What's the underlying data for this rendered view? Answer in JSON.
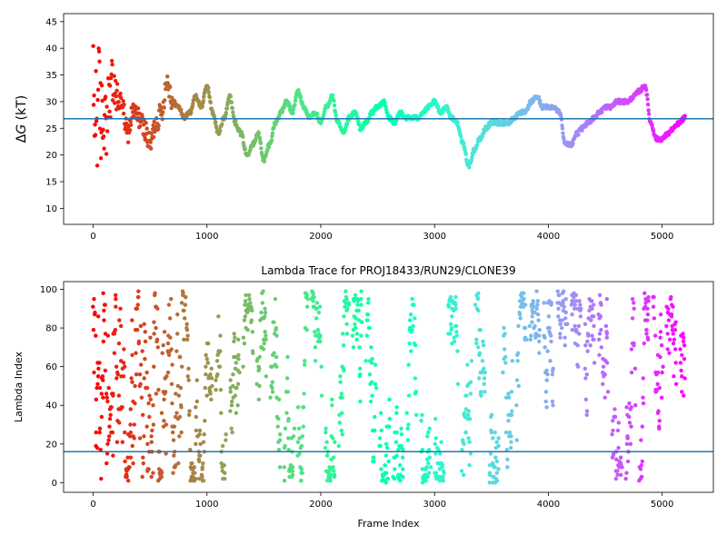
{
  "chart_data": [
    {
      "type": "scatter",
      "title": "",
      "xlabel": "",
      "ylabel_prefix": "Δ",
      "ylabel_italic": "G",
      "ylabel_suffix": " (kT)",
      "xlim": [
        -260,
        5450
      ],
      "ylim": [
        7,
        46.5
      ],
      "xticks": [
        0,
        1000,
        2000,
        3000,
        4000,
        5000
      ],
      "yticks": [
        10,
        15,
        20,
        25,
        30,
        35,
        40,
        45
      ],
      "hline": 26.8,
      "hline_color": "#1f77b4",
      "colormap": "rainbow",
      "n_frames": 5200,
      "trace_keypoints": {
        "x": [
          0,
          40,
          80,
          120,
          160,
          200,
          250,
          300,
          350,
          400,
          450,
          500,
          550,
          600,
          650,
          700,
          750,
          800,
          850,
          900,
          950,
          1000,
          1050,
          1100,
          1150,
          1200,
          1250,
          1300,
          1350,
          1400,
          1450,
          1500,
          1550,
          1600,
          1650,
          1700,
          1750,
          1800,
          1850,
          1900,
          1950,
          2000,
          2050,
          2100,
          2150,
          2200,
          2250,
          2300,
          2350,
          2400,
          2450,
          2500,
          2550,
          2600,
          2650,
          2700,
          2750,
          2800,
          2850,
          2900,
          2950,
          3000,
          3050,
          3100,
          3150,
          3200,
          3250,
          3300,
          3350,
          3400,
          3450,
          3500,
          3550,
          3600,
          3650,
          3700,
          3750,
          3800,
          3850,
          3900,
          3950,
          4000,
          4050,
          4100,
          4150,
          4200,
          4250,
          4300,
          4350,
          4400,
          4450,
          4500,
          4550,
          4600,
          4650,
          4700,
          4750,
          4800,
          4850,
          4900,
          4950,
          5000,
          5050,
          5100,
          5150,
          5200
        ],
        "y": [
          28,
          30,
          26,
          29,
          33,
          31,
          30,
          24,
          28,
          27,
          25,
          22,
          26,
          28,
          34,
          30,
          29,
          27,
          28,
          31,
          29,
          33,
          28,
          24,
          27,
          31,
          26,
          24,
          20,
          22,
          24,
          19,
          22,
          26,
          28,
          30,
          28,
          32,
          29,
          27,
          28,
          26,
          29,
          31,
          26,
          24,
          27,
          28,
          25,
          26,
          28,
          29,
          30,
          27,
          26,
          28,
          27,
          27,
          27,
          28,
          29,
          30,
          28,
          29,
          27,
          26,
          22,
          18,
          21,
          23,
          25,
          26,
          26,
          26,
          26,
          27,
          28,
          28,
          30,
          31,
          29,
          29,
          29,
          28,
          22,
          22,
          24,
          25,
          26,
          27,
          28,
          29,
          29,
          30,
          30,
          30,
          31,
          32,
          33,
          26,
          23,
          23,
          24,
          25,
          26,
          27
        ]
      },
      "early_noise_range": [
        8,
        45
      ],
      "early_noise_frames": 250
    },
    {
      "type": "scatter",
      "title": "Lambda Trace for PROJ18433/RUN29/CLONE39",
      "xlabel": "Frame Index",
      "ylabel": "Lambda Index",
      "xlim": [
        -260,
        5450
      ],
      "ylim": [
        -5,
        104
      ],
      "xticks": [
        0,
        1000,
        2000,
        3000,
        4000,
        5000
      ],
      "yticks": [
        0,
        20,
        40,
        60,
        80,
        100
      ],
      "hline": 16,
      "hline_color": "#1f77b4",
      "colormap": "rainbow",
      "n_frames": 5200,
      "lambda_range": [
        0,
        99
      ]
    }
  ]
}
